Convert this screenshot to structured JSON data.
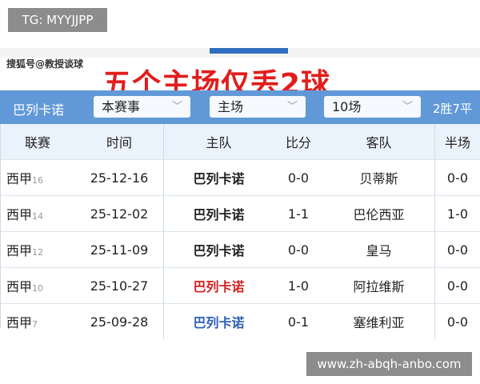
{
  "overlay_label": "TG: MYYJJPP",
  "source_watermark": "搜狐号@教授谈球",
  "headline": "五个主场仅丢2球",
  "filter_bar": {
    "team": "巴列卡诺",
    "competition": "本赛事",
    "venue": "主场",
    "count": "10场",
    "record": "2胜7平"
  },
  "table": {
    "headers": [
      "联赛",
      "时间",
      "主队",
      "比分",
      "客队",
      "半场"
    ],
    "rows": [
      {
        "league": "西甲",
        "round": "16",
        "date": "25-12-16",
        "home": "巴列卡诺",
        "score": "0-0",
        "away": "贝蒂斯",
        "half": "0-0",
        "home_color": "#222222"
      },
      {
        "league": "西甲",
        "round": "14",
        "date": "25-12-02",
        "home": "巴列卡诺",
        "score": "1-1",
        "away": "巴伦西亚",
        "half": "1-0",
        "home_color": "#222222"
      },
      {
        "league": "西甲",
        "round": "12",
        "date": "25-11-09",
        "home": "巴列卡诺",
        "score": "0-0",
        "away": "皇马",
        "half": "0-0",
        "home_color": "#222222"
      },
      {
        "league": "西甲",
        "round": "10",
        "date": "25-10-27",
        "home": "巴列卡诺",
        "score": "1-0",
        "away": "阿拉维斯",
        "half": "0-0",
        "home_color": "#d42222"
      },
      {
        "league": "西甲",
        "round": "7",
        "date": "25-09-28",
        "home": "巴列卡诺",
        "score": "0-1",
        "away": "塞维利亚",
        "half": "0-0",
        "home_color": "#2d5fb5"
      }
    ]
  },
  "site_watermark": "www.zh-abqh-anbo.com"
}
